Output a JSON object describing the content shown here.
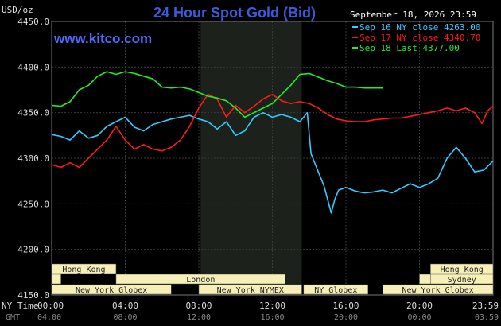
{
  "header": {
    "title": "24 Hour Spot Gold (Bid)",
    "unit": "USD/oz",
    "site": "www.kitco.com",
    "timestamp": "September 18, 2026 23:59"
  },
  "footer": {
    "ny_label": "NY Time",
    "gmt_label": "GMT"
  },
  "colors": {
    "sep16": "#33ccff",
    "sep17": "#ff1a1a",
    "sep18": "#22ee22",
    "background": "#000000",
    "grid": "#3a3a3a",
    "highlight": "#1c211c"
  },
  "chart_data": {
    "type": "line",
    "title": "24 Hour Spot Gold (Bid)",
    "ylabel": "USD/oz",
    "ylim": [
      4150,
      4450
    ],
    "xlim": [
      0,
      24
    ],
    "grid": true,
    "legend": "top-right",
    "highlight_hours": [
      8.1,
      13.6
    ],
    "yticks": [
      "4450.0",
      "4400.0",
      "4350.0",
      "4300.0",
      "4250.0",
      "4200.0",
      "4150.0"
    ],
    "ytick_values": [
      4450,
      4400,
      4350,
      4300,
      4250,
      4200,
      4150
    ],
    "xticks_ny": [
      "00:00",
      "04:00",
      "08:00",
      "12:00",
      "16:00",
      "20:00",
      "23:59"
    ],
    "xticks_gmt": [
      "04:00",
      "08:00",
      "12:00",
      "16:00",
      "20:00",
      "00:00",
      "03:59"
    ],
    "xtick_hours": [
      0,
      4,
      8,
      12,
      16,
      20,
      24
    ],
    "series": [
      {
        "name": "Sep 16 NY close 4263.00",
        "color": "#33ccff",
        "x": [
          0,
          0.5,
          1.0,
          1.5,
          2.0,
          2.5,
          3.0,
          3.5,
          4.0,
          4.5,
          5.0,
          5.5,
          6.0,
          6.5,
          7.0,
          7.5,
          8.0,
          8.5,
          9.0,
          9.5,
          10.0,
          10.5,
          11.0,
          11.5,
          12.0,
          12.5,
          13.0,
          13.5,
          13.9,
          14.1,
          14.4,
          14.8,
          15.2,
          15.4,
          15.6,
          16.0,
          16.5,
          17.0,
          17.5,
          18.0,
          18.5,
          19.0,
          19.5,
          20.0,
          20.5,
          21.0,
          21.5,
          22.0,
          22.5,
          23.0,
          23.5,
          24.0
        ],
        "values": [
          4326,
          4324,
          4320,
          4330,
          4322,
          4325,
          4335,
          4340,
          4345,
          4334,
          4330,
          4337,
          4340,
          4343,
          4345,
          4347,
          4343,
          4340,
          4332,
          4340,
          4325,
          4330,
          4345,
          4350,
          4345,
          4348,
          4345,
          4340,
          4350,
          4305,
          4290,
          4270,
          4240,
          4255,
          4265,
          4268,
          4264,
          4262,
          4263,
          4265,
          4262,
          4267,
          4272,
          4268,
          4272,
          4278,
          4300,
          4312,
          4300,
          4285,
          4287,
          4297
        ]
      },
      {
        "name": "Sep 17 NY close 4340.70",
        "color": "#ff1a1a",
        "x": [
          0,
          0.5,
          1.0,
          1.5,
          2.0,
          2.5,
          3.0,
          3.5,
          4.0,
          4.5,
          5.0,
          5.5,
          6.0,
          6.5,
          7.0,
          7.5,
          8.0,
          8.5,
          9.0,
          9.5,
          10.0,
          10.5,
          11.0,
          11.5,
          12.0,
          12.5,
          13.0,
          13.5,
          14.0,
          14.5,
          15.0,
          15.5,
          16.0,
          16.5,
          17.0,
          17.5,
          18.0,
          18.5,
          19.0,
          19.5,
          20.0,
          20.5,
          21.0,
          21.5,
          22.0,
          22.5,
          23.0,
          23.4,
          23.7,
          24.0
        ],
        "values": [
          4293,
          4290,
          4295,
          4290,
          4300,
          4310,
          4320,
          4335,
          4320,
          4310,
          4315,
          4310,
          4308,
          4312,
          4320,
          4335,
          4355,
          4370,
          4365,
          4345,
          4358,
          4350,
          4357,
          4365,
          4370,
          4363,
          4360,
          4362,
          4360,
          4355,
          4348,
          4343,
          4341,
          4340,
          4340,
          4342,
          4343,
          4344,
          4344,
          4346,
          4348,
          4350,
          4352,
          4355,
          4352,
          4355,
          4350,
          4338,
          4352,
          4357
        ]
      },
      {
        "name": "Sep 18 Last 4377.00",
        "color": "#22ee22",
        "x": [
          0,
          0.5,
          1.0,
          1.5,
          2.0,
          2.5,
          3.0,
          3.5,
          4.0,
          4.5,
          5.0,
          5.5,
          6.0,
          6.5,
          7.0,
          7.5,
          8.0,
          8.5,
          9.0,
          9.5,
          10.0,
          10.5,
          11.0,
          11.5,
          12.0,
          12.5,
          13.0,
          13.5,
          14.0,
          14.5,
          15.0,
          15.5,
          16.0,
          16.5,
          17.0,
          17.5,
          18.0
        ],
        "values": [
          4358,
          4357,
          4362,
          4375,
          4380,
          4390,
          4395,
          4392,
          4395,
          4393,
          4390,
          4387,
          4378,
          4377,
          4378,
          4376,
          4372,
          4368,
          4366,
          4363,
          4355,
          4345,
          4350,
          4355,
          4360,
          4370,
          4380,
          4392,
          4393,
          4389,
          4385,
          4382,
          4378,
          4378,
          4377,
          4377,
          4377
        ]
      }
    ],
    "sessions": [
      {
        "label": "Hong Kong",
        "start": 0,
        "end": 3.5,
        "row": 0
      },
      {
        "label": "",
        "start": 0,
        "end": 0.5,
        "row": 1
      },
      {
        "label": "London",
        "start": 3.5,
        "end": 12.7,
        "row": 1
      },
      {
        "label": "New York Globex",
        "start": 0,
        "end": 6.5,
        "row": 2
      },
      {
        "label": "New York NYMEX",
        "start": 8.0,
        "end": 13.6,
        "row": 2
      },
      {
        "label": "NY Globex",
        "start": 13.7,
        "end": 17.2,
        "row": 2
      },
      {
        "label": "Hong Kong",
        "start": 20.6,
        "end": 24,
        "row": 0
      },
      {
        "label": "",
        "start": 20.0,
        "end": 20.6,
        "row": 1
      },
      {
        "label": "Sydney",
        "start": 20.6,
        "end": 24,
        "row": 1
      },
      {
        "label": "New York Globex",
        "start": 18.0,
        "end": 24,
        "row": 2
      }
    ]
  }
}
